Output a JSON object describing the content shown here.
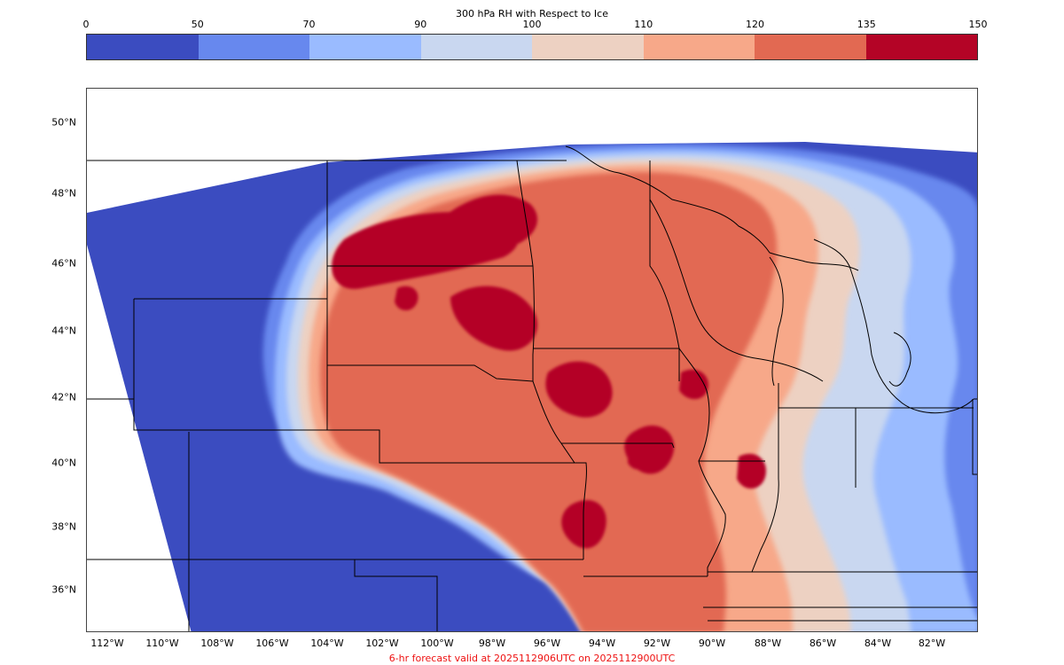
{
  "colorbar": {
    "title": "300 hPa RH with Respect to Ice",
    "ticks": [
      "0",
      "50",
      "70",
      "90",
      "100",
      "110",
      "120",
      "135",
      "150"
    ],
    "colors": [
      "#3b4cc0",
      "#6788ee",
      "#9abbff",
      "#c9d7f0",
      "#edd1c2",
      "#f7a889",
      "#e26952",
      "#b40426"
    ]
  },
  "map": {
    "lat_labels": [
      "50°N",
      "48°N",
      "46°N",
      "44°N",
      "42°N",
      "40°N",
      "38°N",
      "36°N"
    ],
    "lon_labels": [
      "112°W",
      "110°W",
      "108°W",
      "106°W",
      "104°W",
      "102°W",
      "100°W",
      "98°W",
      "96°W",
      "94°W",
      "92°W",
      "90°W",
      "88°W",
      "86°W",
      "84°W",
      "82°W"
    ],
    "background_field_color": "#3b4cc0",
    "no_data_color": "#ffffff",
    "border_color": "#000000"
  },
  "footer": {
    "text": "6-hr forecast valid at 2025112906UTC on 2025112900UTC",
    "color": "#ee1111"
  }
}
